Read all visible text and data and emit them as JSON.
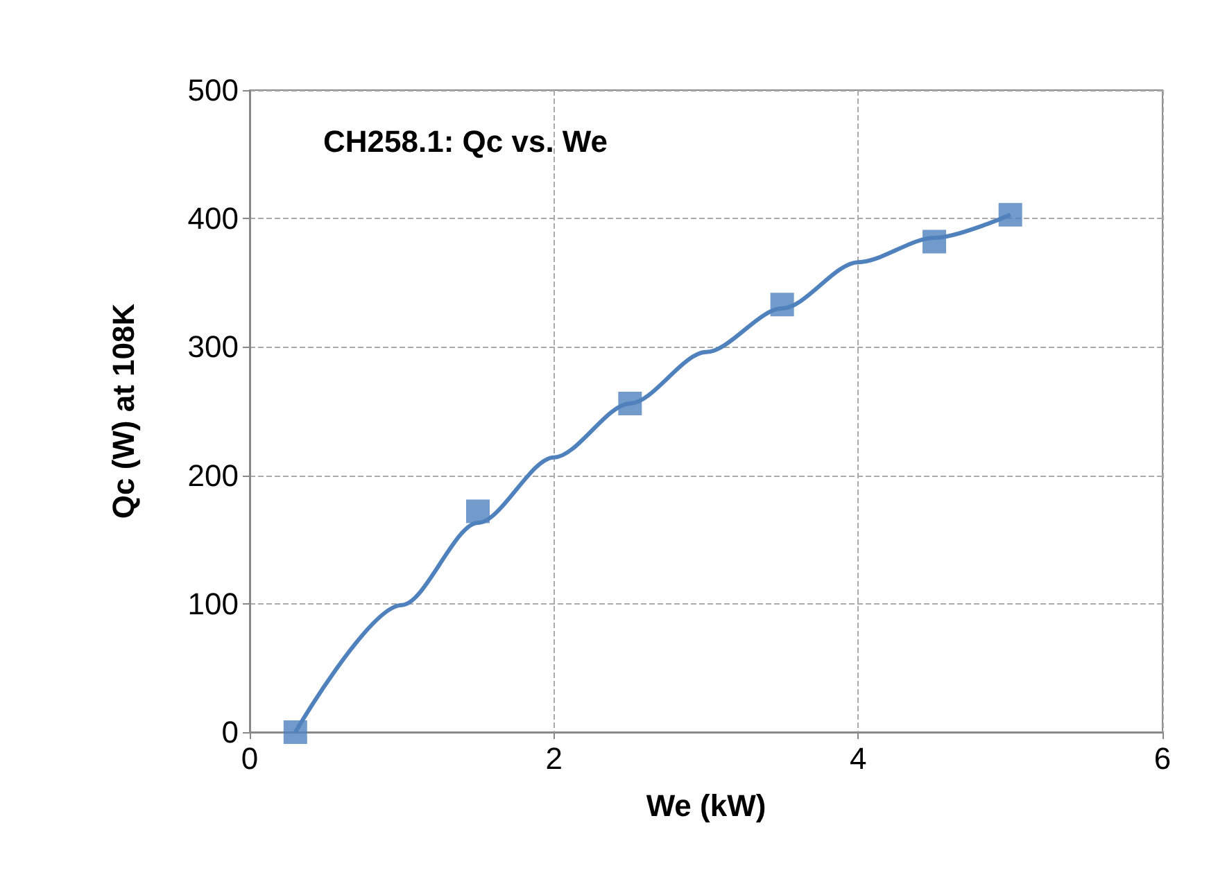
{
  "chart_data": {
    "type": "scatter",
    "title": "CH258.1: Qc vs. We",
    "xlabel": "We (kW)",
    "ylabel": "Qc (W) at 108K",
    "xlim": [
      0,
      6
    ],
    "xticks": [
      0,
      2,
      4,
      6
    ],
    "ylim": [
      0,
      500
    ],
    "yticks": [
      0,
      100,
      200,
      300,
      400,
      500
    ],
    "grid": true,
    "series": [
      {
        "type": "line",
        "color": "#4f81bd",
        "marker": "none",
        "line_style": "solid",
        "x": [
          0.3,
          1,
          1.5,
          2,
          2.5,
          3,
          3.5,
          4,
          4.5,
          5
        ],
        "values": [
          0,
          99,
          163,
          214,
          256,
          296,
          330,
          366,
          385,
          403
        ]
      },
      {
        "color": "#4f81bd",
        "marker": "square",
        "x": [
          0.3,
          1.5,
          2.5,
          3.5,
          4.5,
          5
        ],
        "values": [
          0,
          172,
          256,
          333,
          382,
          403
        ]
      }
    ]
  }
}
